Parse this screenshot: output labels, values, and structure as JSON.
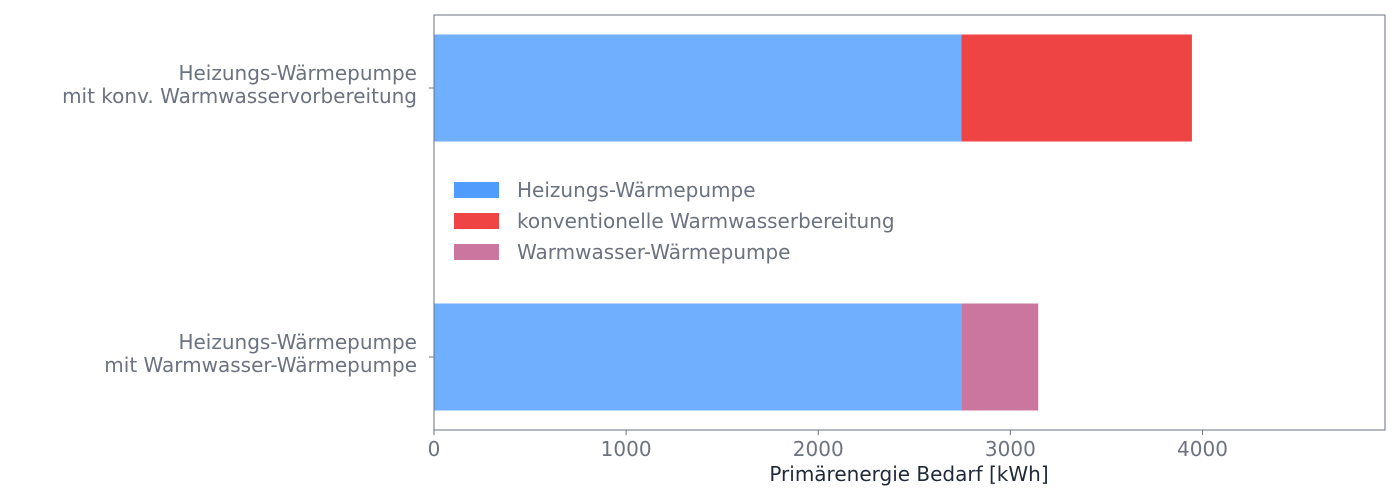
{
  "chart_data": {
    "type": "bar",
    "orientation": "horizontal",
    "stacked": true,
    "categories": [
      [
        "Heizungs-Wärmepumpe",
        "mit konv. Warmwasservorbereitung"
      ],
      [
        "Heizungs-Wärmepumpe",
        "mit Warmwasser-Wärmepumpe"
      ]
    ],
    "series": [
      {
        "name": "Heizungs-Wärmepumpe",
        "color": "#4f9cfc",
        "bar_color": "#70affe",
        "values": [
          2745,
          2745
        ]
      },
      {
        "name": "konventionelle Warmwasserbereitung",
        "color": "#ef4444",
        "bar_color": "#ef4444",
        "values": [
          1200,
          0
        ]
      },
      {
        "name": "Warmwasser-Wärmepumpe",
        "color": "#cb769e",
        "bar_color": "#cb769e",
        "values": [
          0,
          400
        ]
      }
    ],
    "xlabel": "Primärenergie Bedarf [kWh]",
    "ylabel": "",
    "xlim": [
      0,
      4950
    ],
    "xticks": [
      "0",
      "1000",
      "2000",
      "3000",
      "4000"
    ],
    "grid": false,
    "legend_position": "center-left"
  }
}
